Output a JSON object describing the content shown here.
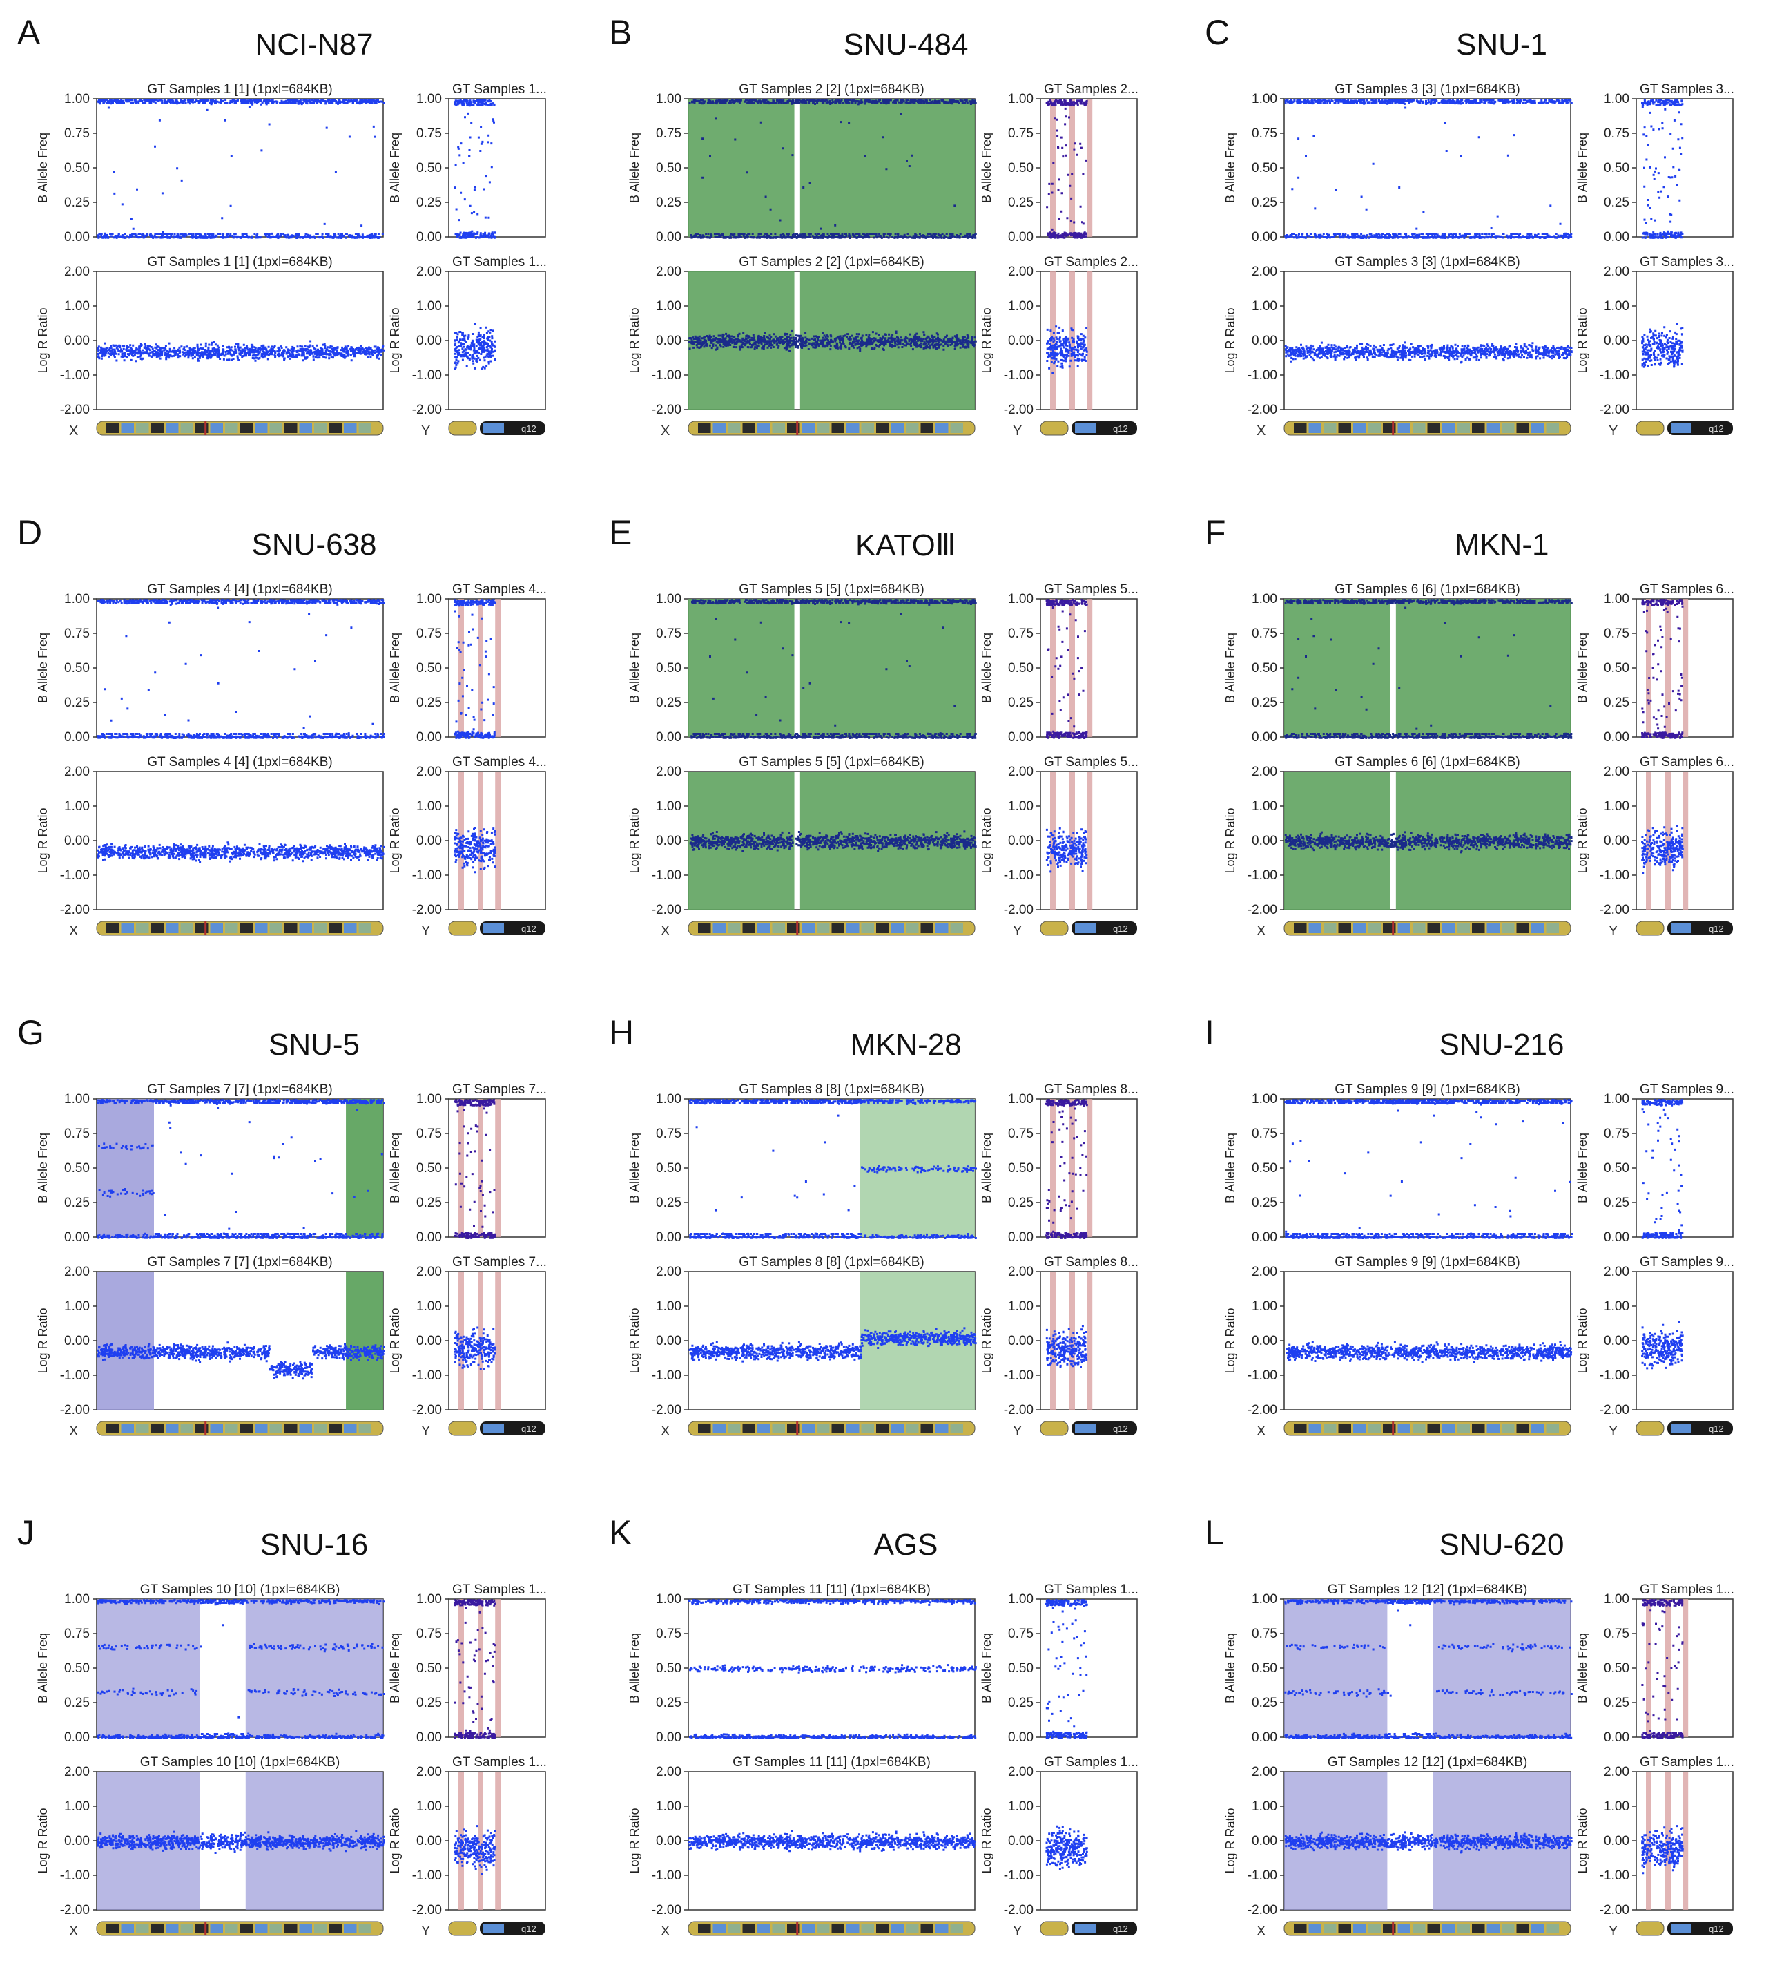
{
  "colors": {
    "point": "#1f3ff0",
    "point_dark": "#1a2a8a",
    "green_region": "#5fa35f",
    "green_light": "#a8d1a8",
    "purple_region": "#9a9ad8",
    "pink_region": "#d9a3a3",
    "purple_dots": "#3a1aa0"
  },
  "chart_data": [
    {
      "label": "A",
      "title": "NCI-N87",
      "type": "scatter",
      "header_x": "GT Samples 1 [1]  (1pxl=684KB)",
      "header_y": "GT Samples 1...",
      "pattern": "loh",
      "gain": false,
      "baf_ylabel": "B Allele Freq",
      "lrr_ylabel": "Log R Ratio",
      "baf_ticks": [
        "1.00",
        "0.75",
        "0.50",
        "0.25",
        "0.00"
      ],
      "lrr_ticks": [
        "2.00",
        "1.00",
        "0.00",
        "-1.00",
        "-2.00"
      ],
      "chrom_x": "X",
      "chrom_y": "Y",
      "band_label": "q12",
      "baf_ylim": [
        0,
        1
      ],
      "lrr_ylim": [
        -2,
        2
      ]
    },
    {
      "label": "B",
      "title": "SNU-484",
      "type": "scatter",
      "header_x": "GT Samples 2 [2]  (1pxl=684KB)",
      "header_y": "GT Samples 2...",
      "pattern": "green",
      "gain": false,
      "baf_ylabel": "B Allele Freq",
      "lrr_ylabel": "Log R Ratio",
      "baf_ticks": [
        "1.00",
        "0.75",
        "0.50",
        "0.25",
        "0.00"
      ],
      "lrr_ticks": [
        "2.00",
        "1.00",
        "0.00",
        "-1.00",
        "-2.00"
      ],
      "chrom_x": "X",
      "chrom_y": "Y",
      "band_label": "q12",
      "baf_ylim": [
        0,
        1
      ],
      "lrr_ylim": [
        -2,
        2
      ]
    },
    {
      "label": "C",
      "title": "SNU-1",
      "type": "scatter",
      "header_x": "GT Samples 3 [3]  (1pxl=684KB)",
      "header_y": "GT Samples 3...",
      "pattern": "loh",
      "gain": false,
      "baf_ylabel": "B Allele Freq",
      "lrr_ylabel": "Log R Ratio",
      "baf_ticks": [
        "1.00",
        "0.75",
        "0.50",
        "0.25",
        "0.00"
      ],
      "lrr_ticks": [
        "2.00",
        "1.00",
        "0.00",
        "-1.00",
        "-2.00"
      ],
      "chrom_x": "X",
      "chrom_y": "Y",
      "band_label": "q12",
      "baf_ylim": [
        0,
        1
      ],
      "lrr_ylim": [
        -2,
        2
      ]
    },
    {
      "label": "D",
      "title": "SNU-638",
      "type": "scatter",
      "header_x": "GT Samples 4 [4]  (1pxl=684KB)",
      "header_y": "GT Samples 4...",
      "pattern": "loh",
      "gain": false,
      "baf_ylabel": "B Allele Freq",
      "lrr_ylabel": "Log R Ratio",
      "baf_ticks": [
        "1.00",
        "0.75",
        "0.50",
        "0.25",
        "0.00"
      ],
      "lrr_ticks": [
        "2.00",
        "1.00",
        "0.00",
        "-1.00",
        "-2.00"
      ],
      "chrom_x": "X",
      "chrom_y": "Y",
      "band_label": "q12",
      "baf_ylim": [
        0,
        1
      ],
      "lrr_ylim": [
        -2,
        2
      ]
    },
    {
      "label": "E",
      "title": "KATOⅢ",
      "type": "scatter",
      "header_x": "GT Samples 5 [5]  (1pxl=684KB)",
      "header_y": "GT Samples 5...",
      "pattern": "green",
      "gain": false,
      "baf_ylabel": "B Allele Freq",
      "lrr_ylabel": "Log R Ratio",
      "baf_ticks": [
        "1.00",
        "0.75",
        "0.50",
        "0.25",
        "0.00"
      ],
      "lrr_ticks": [
        "2.00",
        "1.00",
        "0.00",
        "-1.00",
        "-2.00"
      ],
      "chrom_x": "X",
      "chrom_y": "Y",
      "band_label": "q12",
      "baf_ylim": [
        0,
        1
      ],
      "lrr_ylim": [
        -2,
        2
      ]
    },
    {
      "label": "F",
      "title": "MKN-1",
      "type": "scatter",
      "header_x": "GT Samples 6 [6]  (1pxl=684KB)",
      "header_y": "GT Samples 6...",
      "pattern": "green",
      "gain": false,
      "baf_ylabel": "B Allele Freq",
      "lrr_ylabel": "Log R Ratio",
      "baf_ticks": [
        "1.00",
        "0.75",
        "0.50",
        "0.25",
        "0.00"
      ],
      "lrr_ticks": [
        "2.00",
        "1.00",
        "0.00",
        "-1.00",
        "-2.00"
      ],
      "chrom_x": "X",
      "chrom_y": "Y",
      "band_label": "q12",
      "baf_ylim": [
        0,
        1
      ],
      "lrr_ylim": [
        -2,
        2
      ]
    },
    {
      "label": "G",
      "title": "SNU-5",
      "type": "scatter",
      "header_x": "GT Samples 7 [7]  (1pxl=684KB)",
      "header_y": "GT Samples 7...",
      "pattern": "snu5",
      "gain": false,
      "baf_ylabel": "B Allele Freq",
      "lrr_ylabel": "Log R Ratio",
      "baf_ticks": [
        "1.00",
        "0.75",
        "0.50",
        "0.25",
        "0.00"
      ],
      "lrr_ticks": [
        "2.00",
        "1.00",
        "0.00",
        "-1.00",
        "-2.00"
      ],
      "chrom_x": "X",
      "chrom_y": "Y",
      "band_label": "q12",
      "baf_ylim": [
        0,
        1
      ],
      "lrr_ylim": [
        -2,
        2
      ]
    },
    {
      "label": "H",
      "title": "MKN-28",
      "type": "scatter",
      "header_x": "GT Samples 8 [8]  (1pxl=684KB)",
      "header_y": "GT Samples 8...",
      "pattern": "mkn28",
      "gain": false,
      "baf_ylabel": "B Allele Freq",
      "lrr_ylabel": "Log R Ratio",
      "baf_ticks": [
        "1.00",
        "0.75",
        "0.50",
        "0.25",
        "0.00"
      ],
      "lrr_ticks": [
        "2.00",
        "1.00",
        "0.00",
        "-1.00",
        "-2.00"
      ],
      "chrom_x": "X",
      "chrom_y": "Y",
      "band_label": "q12",
      "baf_ylim": [
        0,
        1
      ],
      "lrr_ylim": [
        -2,
        2
      ]
    },
    {
      "label": "I",
      "title": "SNU-216",
      "type": "scatter",
      "header_x": "GT Samples 9 [9]  (1pxl=684KB)",
      "header_y": "GT Samples 9...",
      "pattern": "loh",
      "gain": false,
      "baf_ylabel": "B Allele Freq",
      "lrr_ylabel": "Log R Ratio",
      "baf_ticks": [
        "1.00",
        "0.75",
        "0.50",
        "0.25",
        "0.00"
      ],
      "lrr_ticks": [
        "2.00",
        "1.00",
        "0.00",
        "-1.00",
        "-2.00"
      ],
      "chrom_x": "X",
      "chrom_y": "Y",
      "band_label": "q12",
      "baf_ylim": [
        0,
        1
      ],
      "lrr_ylim": [
        -2,
        2
      ]
    },
    {
      "label": "J",
      "title": "SNU-16",
      "type": "scatter",
      "header_x": "GT Samples 10 [10]  (1pxl=684KB)",
      "header_y": "GT Samples 1...",
      "pattern": "purple",
      "gain": true,
      "baf_ylabel": "B Allele Freq",
      "lrr_ylabel": "Log R Ratio",
      "baf_ticks": [
        "1.00",
        "0.75",
        "0.50",
        "0.25",
        "0.00"
      ],
      "lrr_ticks": [
        "2.00",
        "1.00",
        "0.00",
        "-1.00",
        "-2.00"
      ],
      "chrom_x": "X",
      "chrom_y": "Y",
      "band_label": "q12",
      "baf_ylim": [
        0,
        1
      ],
      "lrr_ylim": [
        -2,
        2
      ]
    },
    {
      "label": "K",
      "title": "AGS",
      "type": "scatter",
      "header_x": "GT Samples 11 [11]  (1pxl=684KB)",
      "header_y": "GT Samples 1...",
      "pattern": "het",
      "gain": false,
      "baf_ylabel": "B Allele Freq",
      "lrr_ylabel": "Log R Ratio",
      "baf_ticks": [
        "1.00",
        "0.75",
        "0.50",
        "0.25",
        "0.00"
      ],
      "lrr_ticks": [
        "2.00",
        "1.00",
        "0.00",
        "-1.00",
        "-2.00"
      ],
      "chrom_x": "X",
      "chrom_y": "Y",
      "band_label": "q12",
      "baf_ylim": [
        0,
        1
      ],
      "lrr_ylim": [
        -2,
        2
      ]
    },
    {
      "label": "L",
      "title": "SNU-620",
      "type": "scatter",
      "header_x": "GT Samples 12 [12]  (1pxl=684KB)",
      "header_y": "GT Samples 1...",
      "pattern": "purple",
      "gain": true,
      "baf_ylabel": "B Allele Freq",
      "lrr_ylabel": "Log R Ratio",
      "baf_ticks": [
        "1.00",
        "0.75",
        "0.50",
        "0.25",
        "0.00"
      ],
      "lrr_ticks": [
        "2.00",
        "1.00",
        "0.00",
        "-1.00",
        "-2.00"
      ],
      "chrom_x": "X",
      "chrom_y": "Y",
      "band_label": "q12",
      "baf_ylim": [
        0,
        1
      ],
      "lrr_ylim": [
        -2,
        2
      ]
    }
  ]
}
